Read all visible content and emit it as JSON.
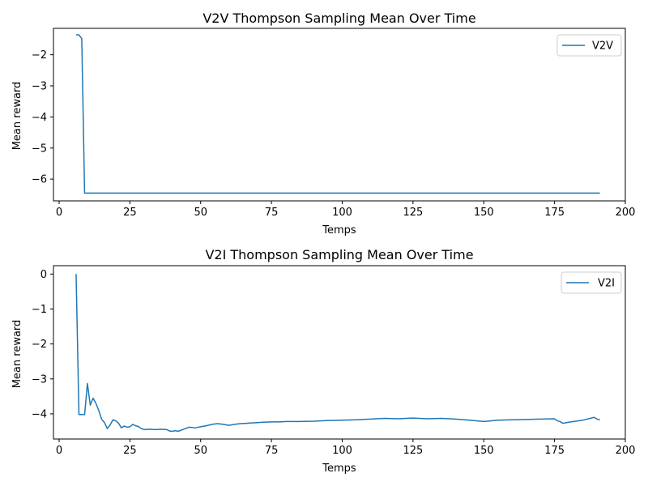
{
  "chart_data": [
    {
      "type": "line",
      "title": "V2V Thompson Sampling Mean Over Time",
      "xlabel": "Temps",
      "ylabel": "Mean reward",
      "xlim": [
        -2,
        200
      ],
      "ylim": [
        -6.7,
        -1.15
      ],
      "xticks": [
        0,
        25,
        50,
        75,
        100,
        125,
        150,
        175,
        200
      ],
      "yticks": [
        -2,
        -3,
        -4,
        -5,
        -6
      ],
      "grid": false,
      "legend_position": "top-right",
      "series": [
        {
          "name": "V2V",
          "color": "#1f77b4",
          "x": [
            6,
            7,
            8,
            9,
            10,
            15,
            25,
            50,
            75,
            100,
            125,
            150,
            175,
            191
          ],
          "y": [
            -1.36,
            -1.36,
            -1.48,
            -6.45,
            -6.45,
            -6.45,
            -6.45,
            -6.45,
            -6.45,
            -6.45,
            -6.45,
            -6.45,
            -6.45,
            -6.45
          ]
        }
      ]
    },
    {
      "type": "line",
      "title": "V2I Thompson Sampling Mean Over Time",
      "xlabel": "Temps",
      "ylabel": "Mean reward",
      "xlim": [
        -2,
        200
      ],
      "ylim": [
        -4.72,
        0.24
      ],
      "xticks": [
        0,
        25,
        50,
        75,
        100,
        125,
        150,
        175,
        200
      ],
      "yticks": [
        0,
        -1,
        -2,
        -3,
        -4
      ],
      "grid": false,
      "legend_position": "top-right",
      "series": [
        {
          "name": "V2I",
          "color": "#1f77b4",
          "x": [
            6,
            7,
            8,
            9,
            10,
            11,
            12,
            13,
            14,
            15,
            16,
            17,
            18,
            19,
            20,
            21,
            22,
            23,
            24,
            25,
            26,
            27,
            28,
            29,
            30,
            32,
            34,
            36,
            38,
            39,
            40,
            41,
            42,
            44,
            46,
            48,
            50,
            52,
            54,
            56,
            58,
            60,
            62,
            64,
            66,
            68,
            70,
            72,
            75,
            78,
            80,
            85,
            90,
            95,
            100,
            105,
            110,
            115,
            120,
            125,
            130,
            135,
            140,
            145,
            150,
            155,
            160,
            165,
            170,
            175,
            176,
            177,
            178,
            180,
            185,
            189,
            190,
            191
          ],
          "y": [
            0.0,
            -4.02,
            -4.02,
            -4.02,
            -3.13,
            -3.75,
            -3.55,
            -3.7,
            -3.9,
            -4.15,
            -4.25,
            -4.42,
            -4.32,
            -4.17,
            -4.2,
            -4.27,
            -4.4,
            -4.35,
            -4.38,
            -4.37,
            -4.3,
            -4.34,
            -4.36,
            -4.42,
            -4.45,
            -4.44,
            -4.45,
            -4.44,
            -4.45,
            -4.49,
            -4.5,
            -4.48,
            -4.5,
            -4.44,
            -4.38,
            -4.4,
            -4.37,
            -4.34,
            -4.3,
            -4.28,
            -4.3,
            -4.33,
            -4.3,
            -4.28,
            -4.27,
            -4.26,
            -4.25,
            -4.24,
            -4.23,
            -4.23,
            -4.22,
            -4.22,
            -4.21,
            -4.19,
            -4.18,
            -4.17,
            -4.15,
            -4.13,
            -4.14,
            -4.12,
            -4.14,
            -4.13,
            -4.15,
            -4.18,
            -4.22,
            -4.18,
            -4.17,
            -4.16,
            -4.15,
            -4.14,
            -4.2,
            -4.22,
            -4.27,
            -4.24,
            -4.18,
            -4.1,
            -4.15,
            -4.17
          ]
        }
      ]
    }
  ]
}
